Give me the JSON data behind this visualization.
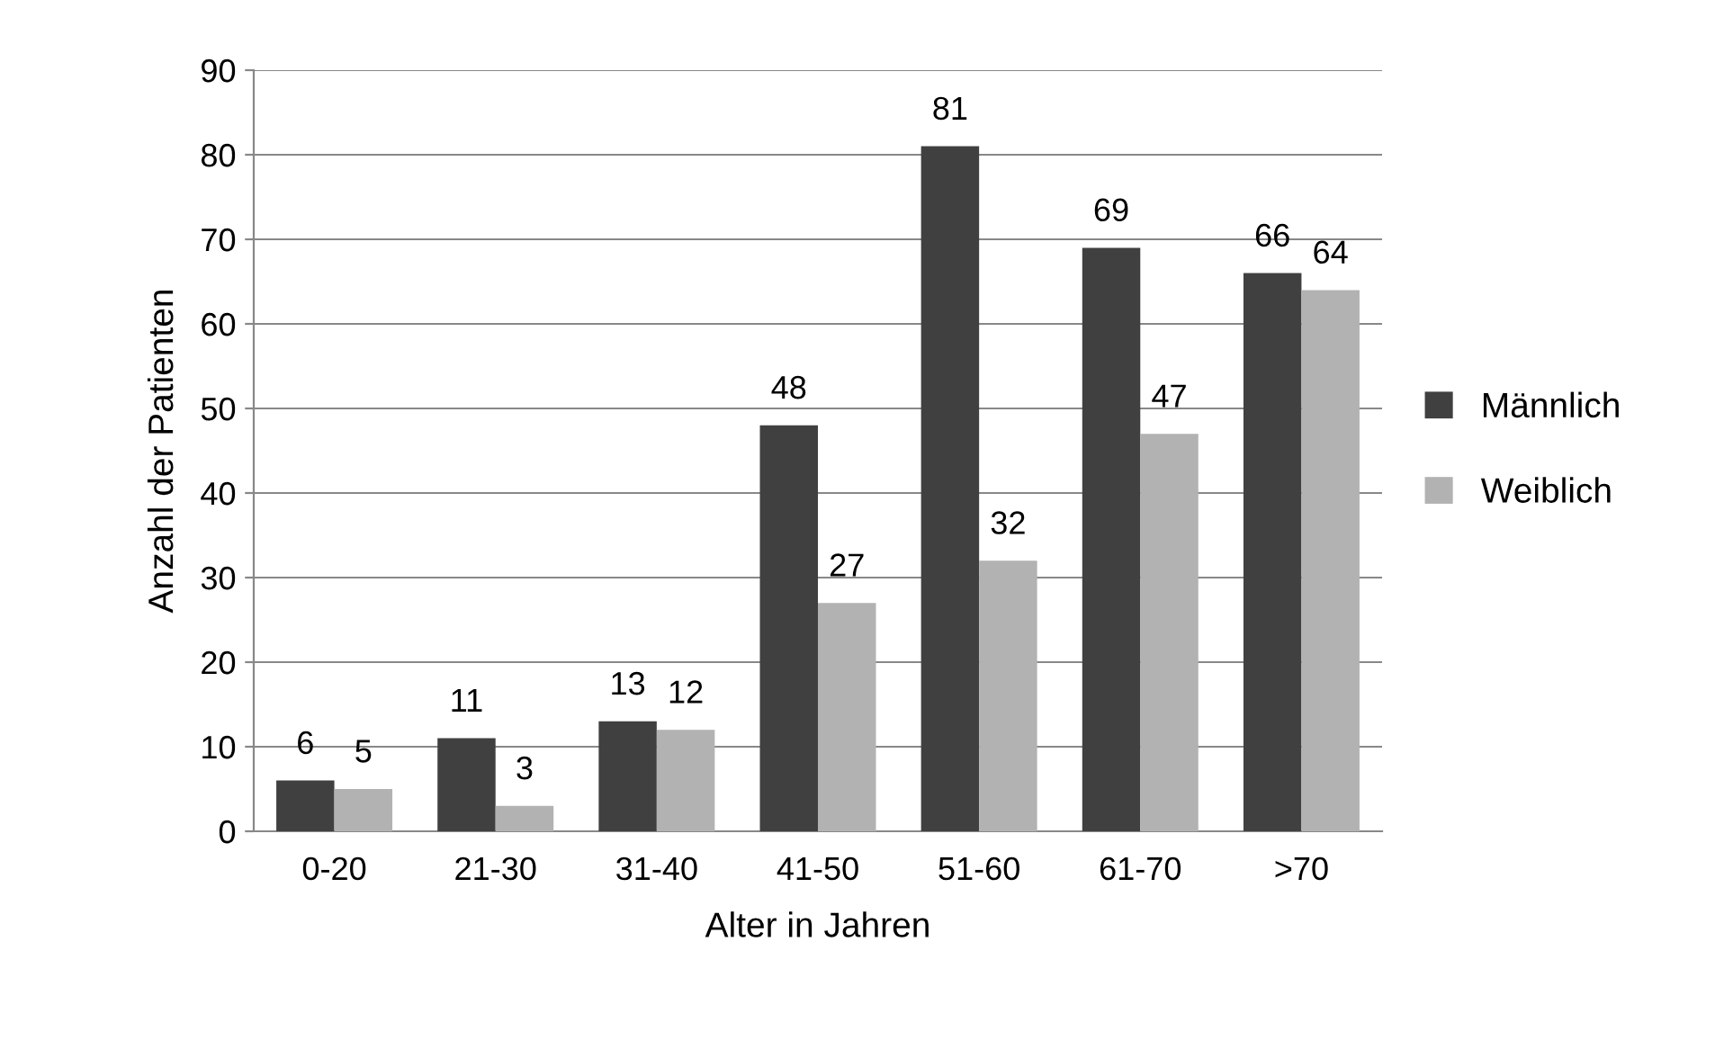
{
  "chart_data": {
    "type": "bar",
    "xlabel": "Alter in Jahren",
    "ylabel": "Anzahl der Patienten",
    "categories": [
      "0-20",
      "21-30",
      "31-40",
      "41-50",
      "51-60",
      "61-70",
      ">70"
    ],
    "series": [
      {
        "name": "Männlich",
        "color": "#404040",
        "values": [
          6,
          11,
          13,
          48,
          81,
          69,
          66
        ]
      },
      {
        "name": "Weiblich",
        "color": "#b2b2b2",
        "values": [
          5,
          3,
          12,
          27,
          32,
          47,
          64
        ]
      }
    ],
    "ylim": [
      0,
      90
    ],
    "yticks": [
      0,
      10,
      20,
      30,
      40,
      50,
      60,
      70,
      80,
      90
    ],
    "grid": "y",
    "legend": "right",
    "data_labels": true
  }
}
